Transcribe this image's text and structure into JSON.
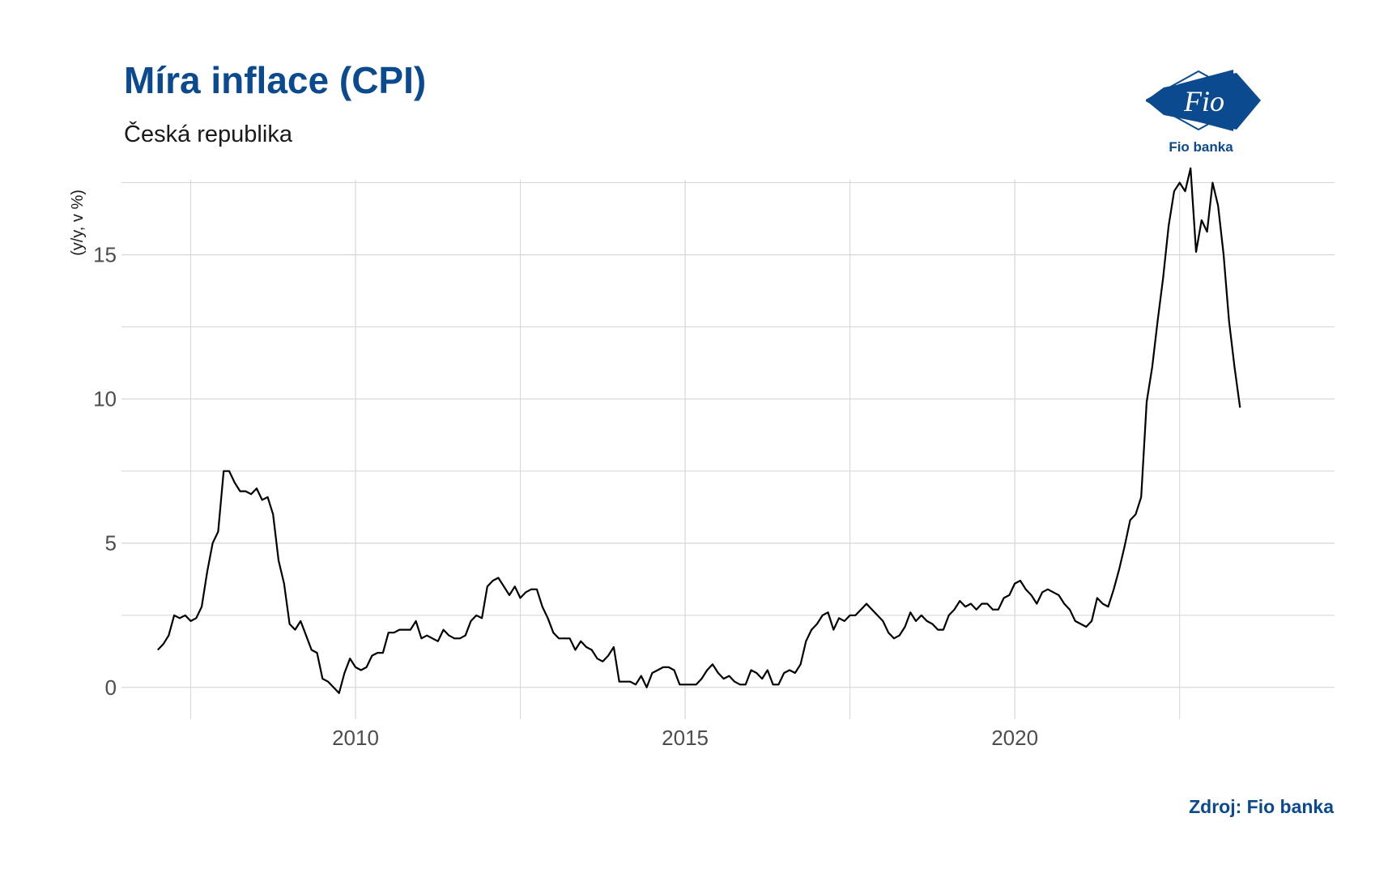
{
  "header": {
    "title": "Míra inflace (CPI)",
    "subtitle": "Česká republika"
  },
  "logo": {
    "mark_text": "Fio",
    "caption": "Fio banka"
  },
  "footer": {
    "source": "Zdroj: Fio banka"
  },
  "colors": {
    "brand": "#0b4a8f",
    "line": "#000000",
    "grid": "#d6d6d6"
  },
  "chart_data": {
    "type": "line",
    "title": "Míra inflace (CPI)",
    "subtitle": "Česká republika",
    "xlabel": "",
    "ylabel": "(y/y, v %)",
    "xlim": [
      2006.45,
      2024.85
    ],
    "ylim": [
      -1.1,
      17.6
    ],
    "x_ticks": [
      2010,
      2015,
      2020
    ],
    "x_tick_labels": [
      "2010",
      "2015",
      "2020"
    ],
    "x_minor_ticks": [
      2007.5,
      2012.5,
      2017.5,
      2022.5
    ],
    "y_ticks": [
      0,
      5,
      10,
      15
    ],
    "y_tick_labels": [
      "0",
      "5",
      "10",
      "15"
    ],
    "y_minor_ticks": [
      2.5,
      7.5,
      12.5,
      17.5
    ],
    "grid": true,
    "legend": "none",
    "series": [
      {
        "values_start": "2007-01",
        "frequency": "monthly",
        "values": [
          1.3,
          1.5,
          1.8,
          2.5,
          2.4,
          2.5,
          2.3,
          2.4,
          2.8,
          4.0,
          5.0,
          5.4,
          7.5,
          7.5,
          7.1,
          6.8,
          6.8,
          6.7,
          6.9,
          6.5,
          6.6,
          6.0,
          4.4,
          3.6,
          2.2,
          2.0,
          2.3,
          1.8,
          1.3,
          1.2,
          0.3,
          0.2,
          0.0,
          -0.2,
          0.5,
          1.0,
          0.7,
          0.6,
          0.7,
          1.1,
          1.2,
          1.2,
          1.9,
          1.9,
          2.0,
          2.0,
          2.0,
          2.3,
          1.7,
          1.8,
          1.7,
          1.6,
          2.0,
          1.8,
          1.7,
          1.7,
          1.8,
          2.3,
          2.5,
          2.4,
          3.5,
          3.7,
          3.8,
          3.5,
          3.2,
          3.5,
          3.1,
          3.3,
          3.4,
          3.4,
          2.8,
          2.4,
          1.9,
          1.7,
          1.7,
          1.7,
          1.3,
          1.6,
          1.4,
          1.3,
          1.0,
          0.9,
          1.1,
          1.4,
          0.2,
          0.2,
          0.2,
          0.1,
          0.4,
          0.0,
          0.5,
          0.6,
          0.7,
          0.7,
          0.6,
          0.1,
          0.1,
          0.1,
          0.1,
          0.3,
          0.6,
          0.8,
          0.5,
          0.3,
          0.4,
          0.2,
          0.1,
          0.1,
          0.6,
          0.5,
          0.3,
          0.6,
          0.1,
          0.1,
          0.5,
          0.6,
          0.5,
          0.8,
          1.6,
          2.0,
          2.2,
          2.5,
          2.6,
          2.0,
          2.4,
          2.3,
          2.5,
          2.5,
          2.7,
          2.9,
          2.7,
          2.5,
          2.3,
          1.9,
          1.7,
          1.8,
          2.1,
          2.6,
          2.3,
          2.5,
          2.3,
          2.2,
          2.0,
          2.0,
          2.5,
          2.7,
          3.0,
          2.8,
          2.9,
          2.7,
          2.9,
          2.9,
          2.7,
          2.7,
          3.1,
          3.2,
          3.6,
          3.7,
          3.4,
          3.2,
          2.9,
          3.3,
          3.4,
          3.3,
          3.2,
          2.9,
          2.7,
          2.3,
          2.2,
          2.1,
          2.3,
          3.1,
          2.9,
          2.8,
          3.4,
          4.1,
          4.9,
          5.8,
          6.0,
          6.6,
          9.9,
          11.1,
          12.7,
          14.2,
          16.0,
          17.2,
          17.5,
          17.2,
          18.0,
          15.1,
          16.2,
          15.8,
          17.5,
          16.7,
          15.0,
          12.7,
          11.1,
          9.7
        ]
      }
    ]
  }
}
